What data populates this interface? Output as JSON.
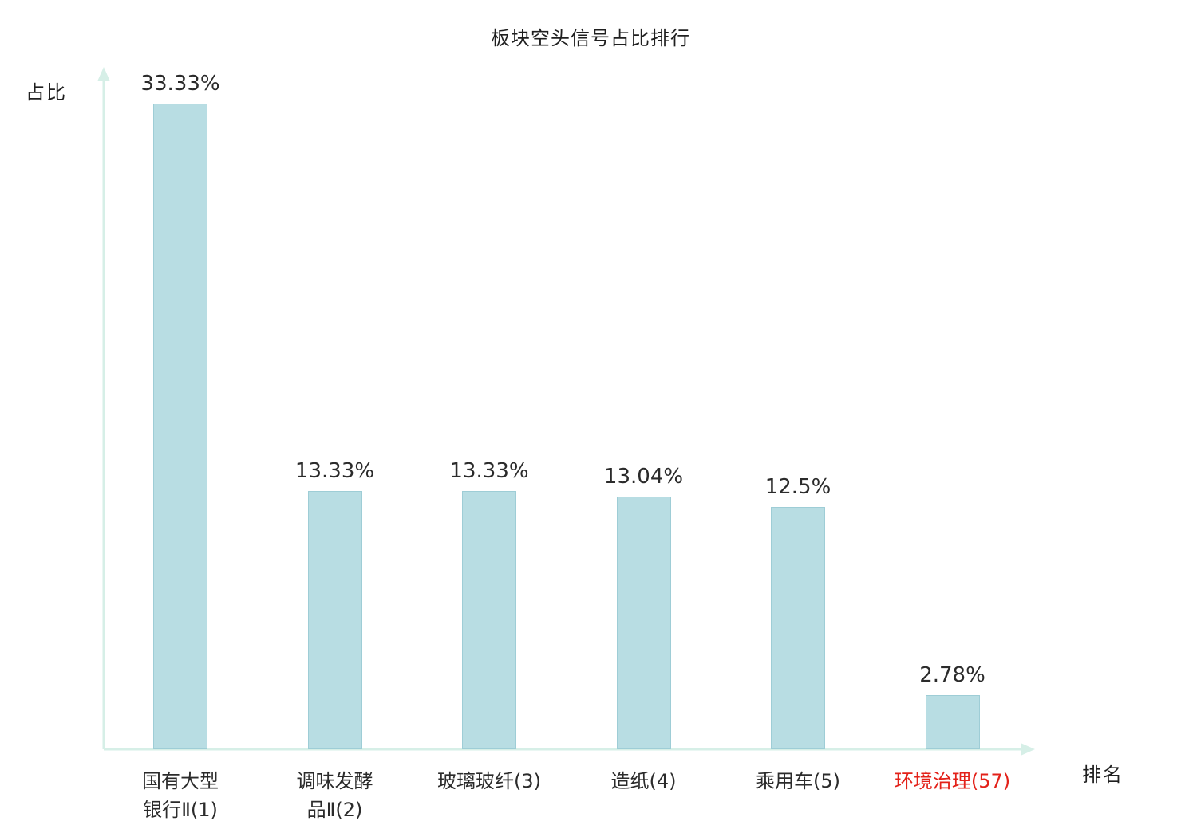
{
  "chart_data": {
    "type": "bar",
    "title": "板块空头信号占比排行",
    "ylabel": "占比",
    "xlabel": "排名",
    "categories": [
      "国有大型银行Ⅱ(1)",
      "调味发酵品Ⅱ(2)",
      "玻璃玻纤(3)",
      "造纸(4)",
      "乘用车(5)",
      "环境治理(57)"
    ],
    "category_lines": [
      [
        "国有大型",
        "银行Ⅱ(1)"
      ],
      [
        "调味发酵",
        "品Ⅱ(2)"
      ],
      [
        "玻璃玻纤(3)"
      ],
      [
        "造纸(4)"
      ],
      [
        "乘用车(5)"
      ],
      [
        "环境治理(57)"
      ]
    ],
    "values": [
      33.33,
      13.33,
      13.33,
      13.04,
      12.5,
      2.78
    ],
    "value_labels": [
      "33.33%",
      "13.33%",
      "13.33%",
      "13.04%",
      "12.5%",
      "2.78%"
    ],
    "highlight_index": 5,
    "highlight_color": "#e32119",
    "bar_color": "#b8dde3",
    "bar_border_color": "#9ecdd6",
    "axis_color": "#d6efe7",
    "text_color": "#2b2b2b",
    "ylim": [
      0,
      33.33
    ],
    "legend": "none",
    "grid": "off"
  }
}
